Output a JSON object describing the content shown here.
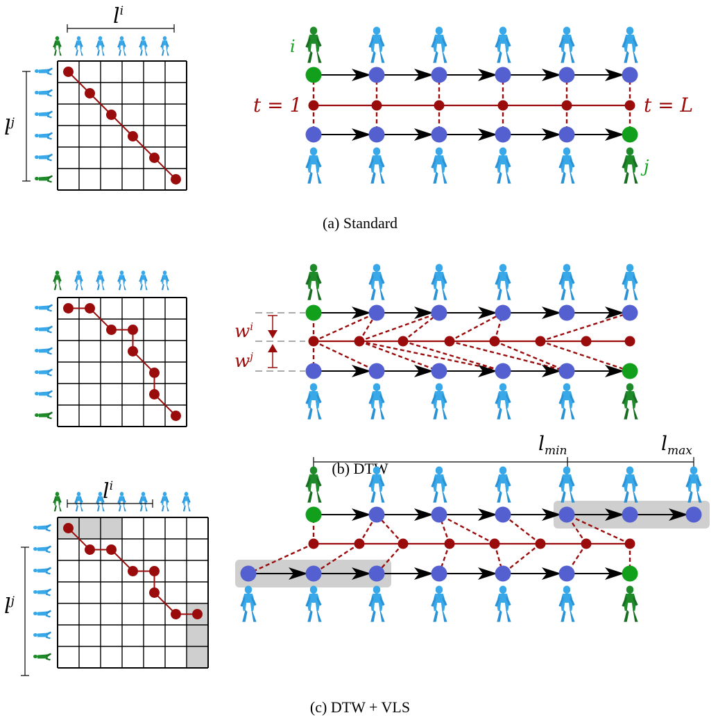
{
  "colors": {
    "red": "#9a0c0c",
    "blue": "#5460d0",
    "green": "#12a01c",
    "person_blue": "#38a8e8",
    "person_green": "#1f8a2a",
    "grey_fill": "#cfcfcf",
    "grey_line": "#999999",
    "black": "#000000"
  },
  "icons": {
    "person": "walking-person-icon",
    "lying_person": "lying-person-icon",
    "arrow": "arrowhead-icon"
  },
  "panel_a": {
    "caption": "(a) Standard",
    "grid": {
      "rows": 6,
      "cols": 6
    },
    "path": [
      [
        0,
        0
      ],
      [
        1,
        1
      ],
      [
        2,
        2
      ],
      [
        3,
        3
      ],
      [
        4,
        4
      ],
      [
        5,
        5
      ]
    ],
    "label_li": "l",
    "label_li_sup": "i",
    "label_lj": "l",
    "label_lj_sup": "j",
    "label_i": "i",
    "label_j": "j",
    "label_t1": "t = 1",
    "label_tL": "t = L",
    "top_nodes": 6,
    "bottom_nodes": 6,
    "mid_nodes": 6,
    "links": [
      [
        0,
        0,
        0
      ],
      [
        1,
        1,
        1
      ],
      [
        2,
        2,
        2
      ],
      [
        3,
        3,
        3
      ],
      [
        4,
        4,
        4
      ],
      [
        5,
        5,
        5
      ]
    ]
  },
  "panel_b": {
    "caption": "(b) DTW",
    "grid": {
      "rows": 6,
      "cols": 6
    },
    "path": [
      [
        0,
        0
      ],
      [
        0,
        1
      ],
      [
        1,
        2
      ],
      [
        1,
        3
      ],
      [
        2,
        3
      ],
      [
        3,
        4
      ],
      [
        4,
        4
      ],
      [
        5,
        5
      ]
    ],
    "label_wi": "w",
    "label_wi_sup": "i",
    "label_wj": "w",
    "label_wj_sup": "j",
    "top_nodes": 6,
    "bottom_nodes": 6,
    "mid_nodes": 8,
    "links": [
      [
        0,
        0,
        0
      ],
      [
        0,
        1,
        1
      ],
      [
        1,
        1,
        2
      ],
      [
        1,
        2,
        3
      ],
      [
        2,
        2,
        3
      ],
      [
        3,
        3,
        4
      ],
      [
        4,
        3,
        4
      ],
      [
        5,
        5,
        5
      ]
    ]
  },
  "panel_c": {
    "caption": "(c) DTW + VLS",
    "grid": {
      "rows": 7,
      "cols": 7
    },
    "shaded_cells": [
      [
        0,
        0
      ],
      [
        0,
        1
      ],
      [
        0,
        2
      ],
      [
        4,
        6
      ],
      [
        5,
        6
      ],
      [
        6,
        6
      ]
    ],
    "path": [
      [
        0,
        0
      ],
      [
        1,
        1
      ],
      [
        1,
        2
      ],
      [
        2,
        3
      ],
      [
        2,
        4
      ],
      [
        3,
        4
      ],
      [
        4,
        5
      ],
      [
        4,
        6
      ]
    ],
    "label_li": "l",
    "label_li_sup": "i",
    "label_lj": "l",
    "label_lj_sup": "j",
    "label_lmin": "l",
    "label_lmin_sub": "min",
    "label_lmax": "l",
    "label_lmax_sub": "max",
    "top_nodes": 7,
    "bottom_nodes": 7,
    "mid_nodes": 8,
    "links": [
      [
        0,
        0,
        0
      ],
      [
        1,
        1,
        1
      ],
      [
        2,
        1,
        2
      ],
      [
        3,
        2,
        3
      ],
      [
        4,
        2,
        4
      ],
      [
        5,
        3,
        4
      ],
      [
        6,
        4,
        5
      ],
      [
        7,
        4,
        6
      ]
    ]
  }
}
